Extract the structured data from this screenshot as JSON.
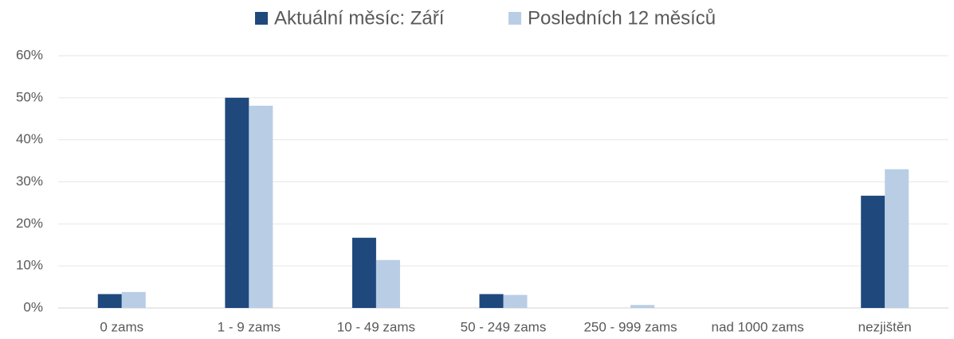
{
  "chart_data": {
    "type": "bar",
    "categories": [
      "0 zams",
      "1 - 9 zams",
      "10 - 49 zams",
      "50 - 249 zams",
      "250 - 999 zams",
      "nad 1000 zams",
      "nezjištěn"
    ],
    "series": [
      {
        "name": "Aktuální měsíc: Září",
        "color": "#1f497d",
        "values": [
          3.3,
          50,
          16.7,
          3.3,
          0,
          0,
          26.7
        ]
      },
      {
        "name": "Posledních 12 měsíců",
        "color": "#b9cde5",
        "values": [
          3.8,
          48.1,
          11.4,
          3.1,
          0.7,
          0,
          33
        ]
      }
    ],
    "ylim": [
      0,
      60
    ],
    "yticks": [
      {
        "value": 0,
        "label": "0%"
      },
      {
        "value": 10,
        "label": "10%"
      },
      {
        "value": 20,
        "label": "20%"
      },
      {
        "value": 30,
        "label": "30%"
      },
      {
        "value": 40,
        "label": "40%"
      },
      {
        "value": 50,
        "label": "50%"
      },
      {
        "value": 60,
        "label": "60%"
      }
    ],
    "grid": true,
    "legend": "top"
  }
}
